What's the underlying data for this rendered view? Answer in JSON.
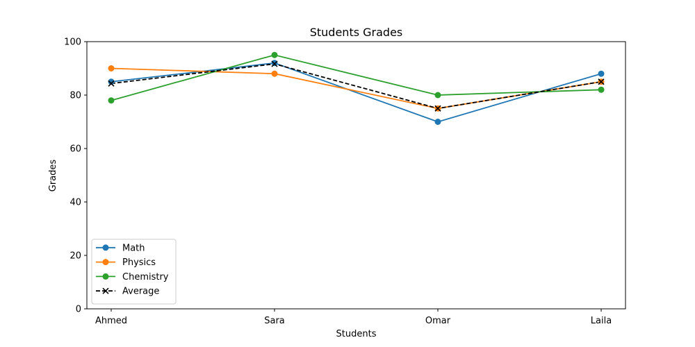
{
  "chart_data": {
    "type": "line",
    "title": "Students Grades",
    "xlabel": "Students",
    "ylabel": "Grades",
    "categories": [
      "Ahmed",
      "Sara",
      "Omar",
      "Laila"
    ],
    "ylim": [
      0,
      100
    ],
    "yticks": [
      0,
      20,
      40,
      60,
      80,
      100
    ],
    "grid": false,
    "legend_position": "lower-left",
    "series": [
      {
        "name": "Math",
        "values": [
          85,
          92,
          70,
          88
        ],
        "color": "#1f77b4",
        "marker": "circle",
        "linestyle": "solid"
      },
      {
        "name": "Physics",
        "values": [
          90,
          88,
          75,
          85
        ],
        "color": "#ff7f0e",
        "marker": "circle",
        "linestyle": "solid"
      },
      {
        "name": "Chemistry",
        "values": [
          78,
          95,
          80,
          82
        ],
        "color": "#2ca02c",
        "marker": "circle",
        "linestyle": "solid"
      },
      {
        "name": "Average",
        "values": [
          84.33,
          91.67,
          75,
          85
        ],
        "color": "#000000",
        "marker": "x",
        "linestyle": "dashed"
      }
    ]
  }
}
